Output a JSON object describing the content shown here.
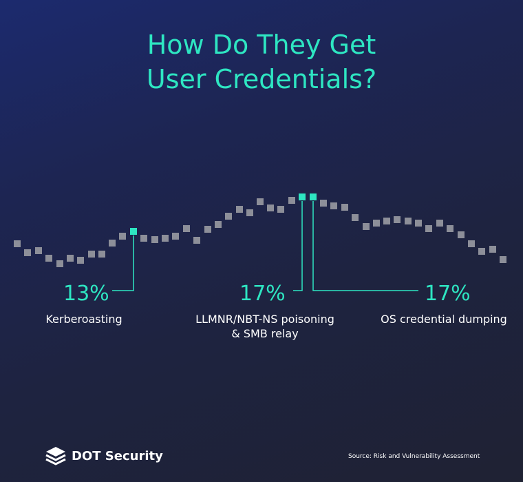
{
  "title_lines": [
    "How Do They Get",
    "User Credentials?"
  ],
  "chart_data": {
    "type": "scatter",
    "title": "How Do They Get User Credentials?",
    "highlights": [
      {
        "value": "13%",
        "label": "Kerberoasting"
      },
      {
        "value": "17%",
        "label": "LLMNR/NBT-NS poisoning & SMB relay"
      },
      {
        "value": "17%",
        "label": "OS credential dumping"
      }
    ]
  },
  "colors": {
    "accent": "#2ee6c2",
    "marker": "#8d8f99",
    "text": "#ffffff"
  },
  "logo": {
    "icon": "stacked-layers-icon",
    "name": "DOT Security"
  },
  "source": "Source: Risk and Vulnerability Assessment"
}
